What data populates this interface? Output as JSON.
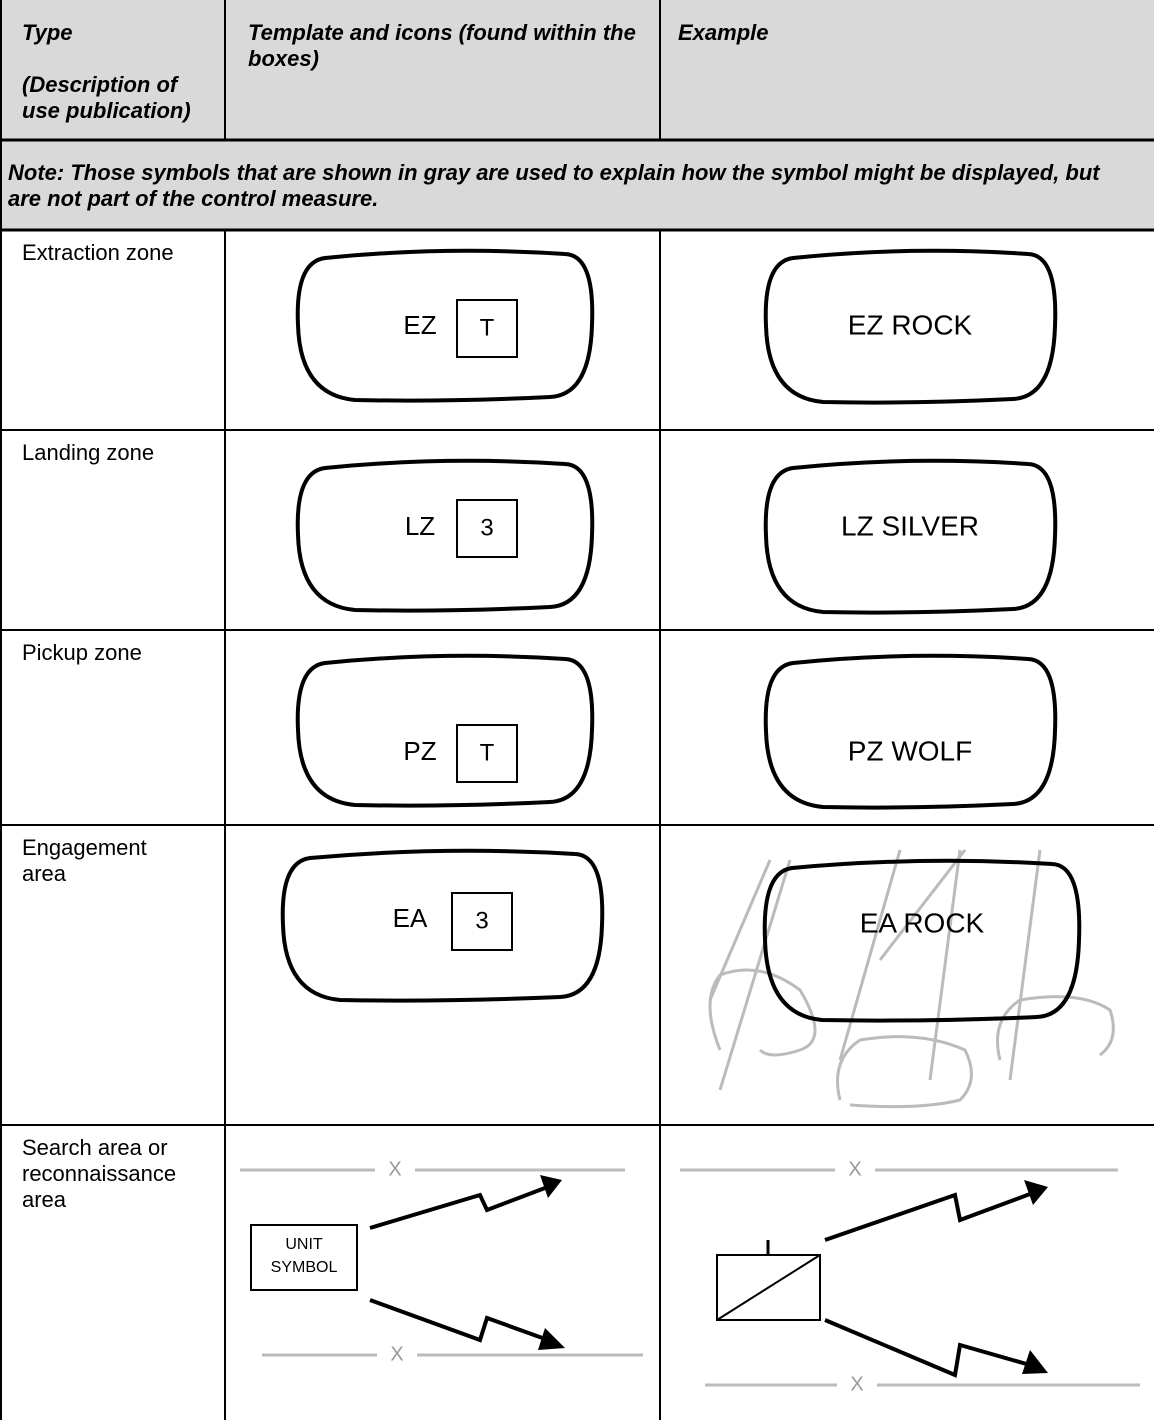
{
  "header": {
    "type": "Type",
    "type_note": "(Description of use publication)",
    "template": "Template and icons (found within the boxes)",
    "example": "Example"
  },
  "note": "Note: Those symbols that are shown in gray are used to explain how the symbol might be displayed, but are not part of the control measure.",
  "rows": [
    {
      "type": "Extraction zone",
      "template_label": "EZ",
      "template_icon": "T",
      "example_label": "EZ ROCK"
    },
    {
      "type": "Landing zone",
      "template_label": "LZ",
      "template_icon": "3",
      "example_label": "LZ SILVER"
    },
    {
      "type": "Pickup zone",
      "template_label": "PZ",
      "template_icon": "T",
      "example_label": "PZ WOLF"
    },
    {
      "type": "Engagement area",
      "template_label": "EA",
      "template_icon": "3",
      "example_label": "EA ROCK"
    },
    {
      "type": "Search area or reconnaissance area",
      "template_unit": [
        "UNIT",
        "SYMBOL"
      ],
      "template_marks": [
        "X",
        "X"
      ],
      "example_marks": [
        "X",
        "X"
      ]
    }
  ]
}
